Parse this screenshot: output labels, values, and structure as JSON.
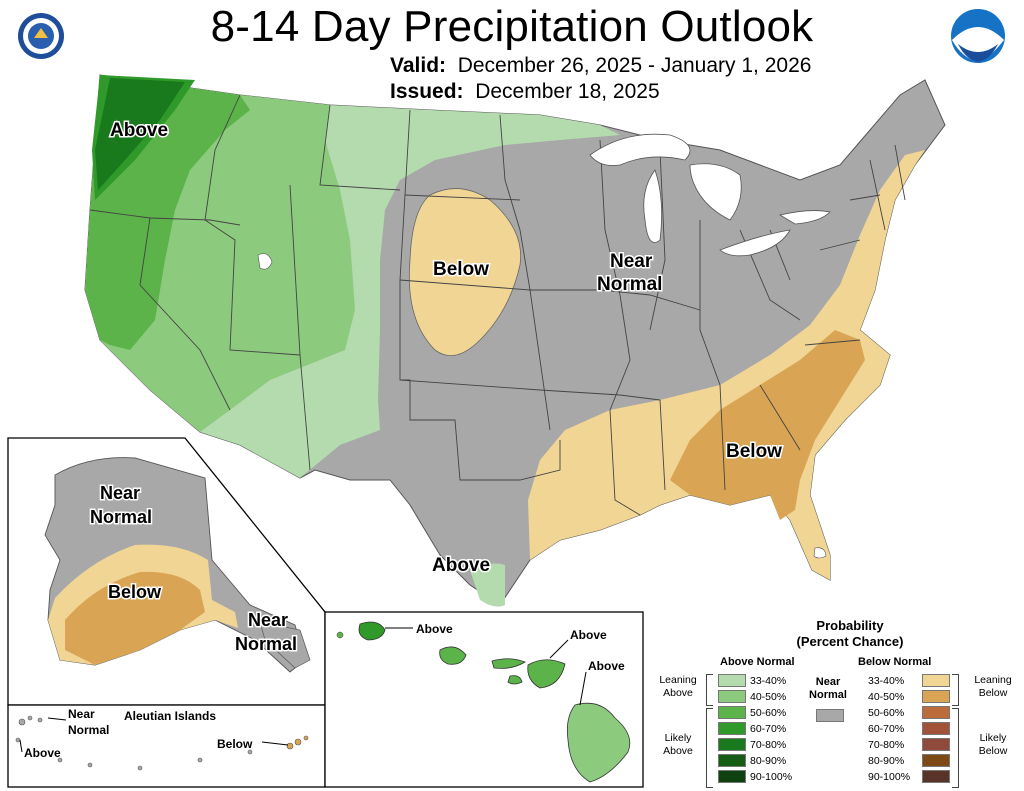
{
  "title": "8-14 Day Precipitation Outlook",
  "valid_label": "Valid:",
  "valid_dates": "December 26, 2025 - January 1, 2026",
  "issued_label": "Issued:",
  "issued_date": "December 18, 2025",
  "map_labels": {
    "northwest": "Above",
    "plains": "Below",
    "central_1": "Near",
    "central_2": "Normal",
    "southeast": "Below",
    "texas": "Above"
  },
  "alaska_labels": {
    "north_1": "Near",
    "north_2": "Normal",
    "south": "Below",
    "panhandle_1": "Near",
    "panhandle_2": "Normal"
  },
  "aleutian_labels": {
    "title": "Aleutian Islands",
    "near_1": "Near",
    "near_2": "Normal",
    "above": "Above",
    "below": "Below"
  },
  "hawaii_labels": {
    "kauai": "Above",
    "maui": "Above",
    "big_island": "Above"
  },
  "legend": {
    "title_1": "Probability",
    "title_2": "(Percent Chance)",
    "above_header": "Above Normal",
    "below_header": "Below Normal",
    "near_1": "Near",
    "near_2": "Normal",
    "leaning_above_1": "Leaning",
    "leaning_above_2": "Above",
    "likely_above_1": "Likely",
    "likely_above_2": "Above",
    "leaning_below_1": "Leaning",
    "leaning_below_2": "Below",
    "likely_below_1": "Likely",
    "likely_below_2": "Below",
    "bins": [
      "33-40%",
      "40-50%",
      "50-60%",
      "60-70%",
      "70-80%",
      "80-90%",
      "90-100%"
    ],
    "above_colors": [
      "#b3dbae",
      "#8cca7d",
      "#5bb34a",
      "#2f9a2a",
      "#187a1d",
      "#155c14",
      "#0f4010"
    ],
    "below_colors": [
      "#f1d594",
      "#d9a554",
      "#bb6c3a",
      "#a3523a",
      "#904a3c",
      "#7d4a16",
      "#5a3328"
    ],
    "near_color": "#a8a8a8"
  }
}
